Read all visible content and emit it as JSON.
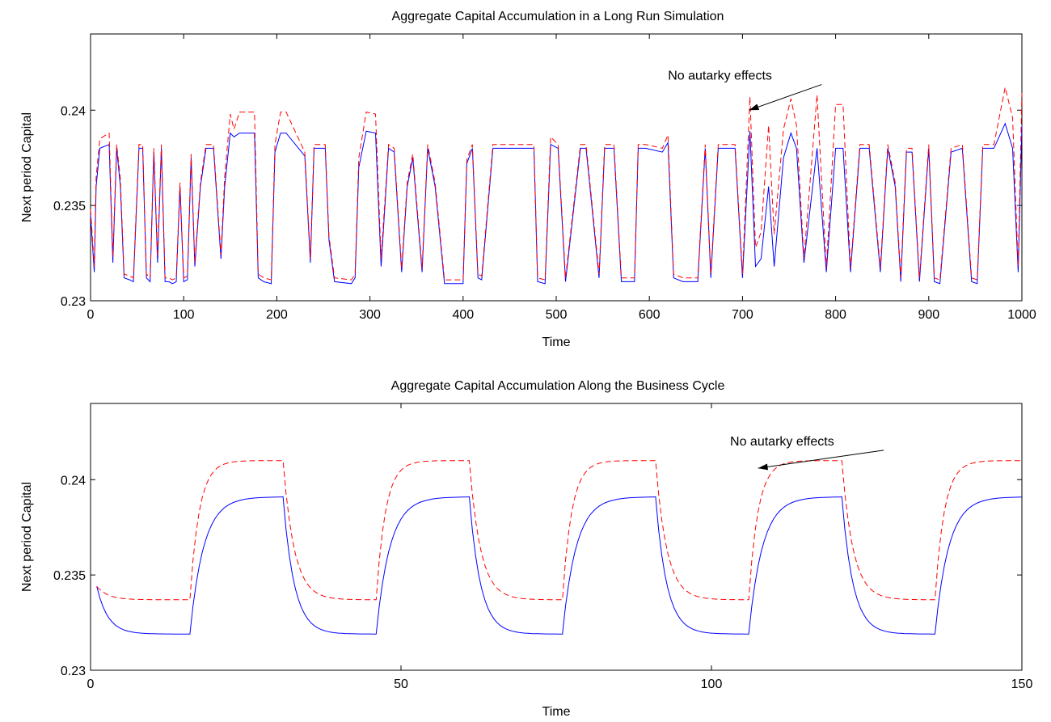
{
  "chart_data": [
    {
      "type": "line",
      "title": "Aggregate Capital Accumulation in a Long Run Simulation",
      "xlabel": "Time",
      "ylabel": "Next period Capital",
      "xlim": [
        0,
        1000
      ],
      "ylim": [
        0.23,
        0.244
      ],
      "xticks": [
        0,
        100,
        200,
        300,
        400,
        500,
        600,
        700,
        800,
        900,
        1000
      ],
      "xtick_labels": [
        "0",
        "100",
        "200",
        "300",
        "400",
        "500",
        "600",
        "700",
        "800",
        "900",
        "1000"
      ],
      "yticks": [
        0.23,
        0.235,
        0.24
      ],
      "ytick_labels": [
        "0.23",
        "0.235",
        "0.24"
      ],
      "grid": false,
      "annotation": {
        "text": "No autarky effects",
        "text_at": [
          620,
          0.2416
        ],
        "arrow_to": [
          707,
          0.24
        ]
      },
      "series": [
        {
          "color": "#0000ff",
          "dash": "solid",
          "x": [
            0,
            4,
            6,
            10,
            20,
            24,
            28,
            32,
            36,
            42,
            46,
            52,
            56,
            60,
            64,
            68,
            72,
            76,
            80,
            84,
            88,
            92,
            96,
            100,
            104,
            108,
            112,
            118,
            124,
            132,
            140,
            144,
            150,
            154,
            160,
            176,
            180,
            186,
            194,
            198,
            204,
            210,
            230,
            236,
            240,
            252,
            256,
            262,
            280,
            284,
            288,
            296,
            306,
            312,
            320,
            326,
            334,
            340,
            346,
            356,
            362,
            370,
            380,
            400,
            404,
            410,
            416,
            420,
            432,
            452,
            476,
            480,
            488,
            494,
            502,
            510,
            526,
            532,
            546,
            552,
            562,
            570,
            584,
            588,
            596,
            614,
            620,
            626,
            636,
            652,
            660,
            666,
            674,
            692,
            700,
            708,
            714,
            720,
            728,
            734,
            744,
            752,
            758,
            766,
            780,
            790,
            800,
            808,
            816,
            826,
            836,
            848,
            856,
            864,
            870,
            876,
            882,
            890,
            900,
            906,
            912,
            924,
            936,
            946,
            952,
            958,
            970,
            982,
            990,
            996,
            1000
          ],
          "values": [
            0.2345,
            0.2315,
            0.236,
            0.238,
            0.2382,
            0.232,
            0.238,
            0.236,
            0.2312,
            0.2311,
            0.231,
            0.238,
            0.238,
            0.2312,
            0.231,
            0.2378,
            0.232,
            0.238,
            0.231,
            0.231,
            0.2309,
            0.231,
            0.236,
            0.231,
            0.2311,
            0.2375,
            0.2318,
            0.236,
            0.238,
            0.238,
            0.2322,
            0.236,
            0.2388,
            0.2386,
            0.2388,
            0.2388,
            0.2312,
            0.231,
            0.2309,
            0.2378,
            0.2388,
            0.2388,
            0.2376,
            0.232,
            0.238,
            0.238,
            0.2332,
            0.231,
            0.2309,
            0.2312,
            0.237,
            0.2389,
            0.2388,
            0.2318,
            0.238,
            0.2378,
            0.2315,
            0.236,
            0.2375,
            0.2315,
            0.238,
            0.236,
            0.2309,
            0.2309,
            0.2372,
            0.238,
            0.2312,
            0.2311,
            0.238,
            0.238,
            0.238,
            0.231,
            0.2309,
            0.2382,
            0.238,
            0.231,
            0.238,
            0.238,
            0.2312,
            0.238,
            0.238,
            0.231,
            0.231,
            0.238,
            0.238,
            0.2378,
            0.2383,
            0.2312,
            0.231,
            0.231,
            0.238,
            0.2312,
            0.238,
            0.238,
            0.2312,
            0.2389,
            0.2318,
            0.2322,
            0.236,
            0.2318,
            0.2375,
            0.2388,
            0.238,
            0.232,
            0.238,
            0.2315,
            0.238,
            0.238,
            0.2315,
            0.238,
            0.238,
            0.2315,
            0.238,
            0.236,
            0.231,
            0.2378,
            0.2378,
            0.231,
            0.238,
            0.231,
            0.2309,
            0.2378,
            0.238,
            0.231,
            0.2309,
            0.238,
            0.238,
            0.2393,
            0.238,
            0.2315,
            0.2392
          ],
          "label_visible": false
        },
        {
          "color": "#ff0000",
          "dash": "dashed",
          "x": [
            0,
            4,
            6,
            10,
            20,
            24,
            28,
            32,
            36,
            42,
            46,
            52,
            56,
            60,
            64,
            68,
            72,
            76,
            80,
            84,
            88,
            92,
            96,
            100,
            104,
            108,
            112,
            118,
            124,
            132,
            140,
            144,
            150,
            154,
            160,
            176,
            180,
            186,
            194,
            198,
            204,
            210,
            230,
            236,
            240,
            252,
            256,
            262,
            280,
            284,
            288,
            296,
            306,
            312,
            320,
            326,
            334,
            340,
            346,
            356,
            362,
            370,
            380,
            400,
            404,
            410,
            416,
            420,
            432,
            452,
            476,
            480,
            488,
            494,
            502,
            510,
            526,
            532,
            546,
            552,
            562,
            570,
            584,
            588,
            596,
            614,
            620,
            626,
            636,
            652,
            660,
            666,
            674,
            692,
            700,
            708,
            714,
            720,
            728,
            734,
            744,
            752,
            758,
            766,
            780,
            790,
            800,
            808,
            816,
            826,
            836,
            848,
            856,
            864,
            870,
            876,
            882,
            890,
            900,
            906,
            912,
            924,
            936,
            946,
            952,
            958,
            970,
            982,
            990,
            996,
            1000
          ],
          "values": [
            0.2348,
            0.2318,
            0.2365,
            0.2385,
            0.2388,
            0.2323,
            0.2382,
            0.2364,
            0.2314,
            0.2313,
            0.2312,
            0.2382,
            0.2382,
            0.2314,
            0.2312,
            0.238,
            0.2323,
            0.2382,
            0.2312,
            0.2312,
            0.2311,
            0.2312,
            0.2362,
            0.2312,
            0.2313,
            0.2377,
            0.232,
            0.2362,
            0.2382,
            0.2382,
            0.2324,
            0.2365,
            0.2398,
            0.239,
            0.2399,
            0.2399,
            0.2314,
            0.2312,
            0.2311,
            0.2382,
            0.2399,
            0.2399,
            0.2378,
            0.2322,
            0.2382,
            0.2382,
            0.2334,
            0.2312,
            0.2311,
            0.2314,
            0.2375,
            0.2399,
            0.2398,
            0.2322,
            0.2382,
            0.238,
            0.2317,
            0.2362,
            0.2377,
            0.2317,
            0.2382,
            0.2362,
            0.2311,
            0.2311,
            0.2374,
            0.2382,
            0.2314,
            0.2313,
            0.2382,
            0.2382,
            0.2382,
            0.2312,
            0.2311,
            0.2386,
            0.2382,
            0.2312,
            0.2382,
            0.2382,
            0.2314,
            0.2382,
            0.2382,
            0.2312,
            0.2312,
            0.2382,
            0.2382,
            0.238,
            0.2387,
            0.2314,
            0.2312,
            0.2312,
            0.2382,
            0.2314,
            0.2382,
            0.2382,
            0.2314,
            0.2407,
            0.2328,
            0.2336,
            0.2392,
            0.2335,
            0.239,
            0.2406,
            0.2392,
            0.2322,
            0.2408,
            0.2317,
            0.2403,
            0.2403,
            0.2317,
            0.2382,
            0.2382,
            0.2317,
            0.2382,
            0.2362,
            0.2312,
            0.238,
            0.238,
            0.2312,
            0.2382,
            0.2312,
            0.2311,
            0.238,
            0.2382,
            0.2312,
            0.2311,
            0.2382,
            0.2382,
            0.2412,
            0.2396,
            0.2318,
            0.2409
          ],
          "label_visible": false
        }
      ]
    },
    {
      "type": "line",
      "title": "Aggregate Capital Accumulation Along the Business Cycle",
      "xlabel": "Time",
      "ylabel": "Next period Capital",
      "xlim": [
        0,
        150
      ],
      "ylim": [
        0.23,
        0.244
      ],
      "xticks": [
        0,
        50,
        100,
        150
      ],
      "xtick_labels": [
        "0",
        "50",
        "100",
        "150"
      ],
      "yticks": [
        0.23,
        0.235,
        0.24
      ],
      "ytick_labels": [
        "0.23",
        "0.235",
        "0.24"
      ],
      "grid": false,
      "annotation": {
        "text": "No autarky effects",
        "text_at": [
          103,
          0.2418
        ],
        "arrow_to": [
          107.5,
          0.2406
        ]
      },
      "cycle": {
        "start": 1,
        "low_start": 0.2344,
        "period": 30,
        "rise_at": 16,
        "fall_at": 31,
        "end": 150,
        "red_low": 0.2337,
        "red_high": 0.241,
        "blue_low": 0.2319,
        "blue_high": 0.2391,
        "red_rise_tau": 1.5,
        "blue_rise_tau": 2.2,
        "red_fall_tau": 1.8,
        "blue_fall_tau": 1.8
      },
      "series": [
        {
          "color": "#0000ff",
          "dash": "solid",
          "label_visible": false
        },
        {
          "color": "#ff0000",
          "dash": "dashed",
          "label_visible": false
        }
      ]
    }
  ]
}
